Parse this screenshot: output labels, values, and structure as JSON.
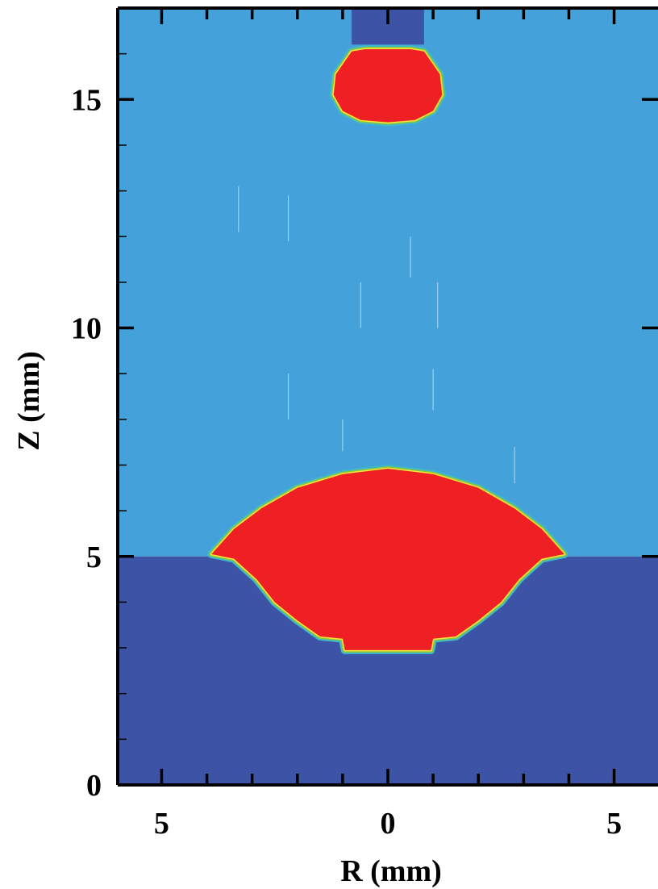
{
  "chart_data": {
    "type": "heatmap",
    "title": "",
    "xlabel": "R (mm)",
    "ylabel": "Z (mm)",
    "xlim": [
      -5.97,
      5.97
    ],
    "ylim": [
      0,
      17
    ],
    "x_tick_labels": [
      {
        "value": -5,
        "label": "5"
      },
      {
        "value": 0,
        "label": "0"
      },
      {
        "value": 5,
        "label": "5"
      }
    ],
    "y_tick_labels": [
      {
        "value": 0,
        "label": "0"
      },
      {
        "value": 5,
        "label": "5"
      },
      {
        "value": 10,
        "label": "10"
      },
      {
        "value": 15,
        "label": "15"
      }
    ],
    "x_major_ticks": [
      -5,
      -4,
      -3,
      -2,
      -1,
      0,
      1,
      2,
      3,
      4,
      5
    ],
    "y_minor_ticks": [
      1,
      2,
      3,
      4,
      6,
      7,
      8,
      9,
      11,
      12,
      13,
      14,
      16
    ],
    "grid": false,
    "legend": "none",
    "colors": {
      "substrate": "#3c53a6",
      "gas": "#44a1da",
      "molten_droplet": "#ee2024",
      "interface_outer": "#3fb8c8",
      "interface_mid": "#8dc63f",
      "interface_inner": "#f5e53b"
    },
    "regions": [
      {
        "name": "gas",
        "fill": "gas",
        "points": [
          [
            -5.97,
            5
          ],
          [
            5.97,
            5
          ],
          [
            5.97,
            17
          ],
          [
            -5.97,
            17
          ]
        ]
      },
      {
        "name": "substrate",
        "fill": "substrate",
        "points": [
          [
            -5.97,
            0
          ],
          [
            5.97,
            0
          ],
          [
            5.97,
            5
          ],
          [
            -5.97,
            5
          ]
        ]
      },
      {
        "name": "wire",
        "fill": "substrate",
        "points": [
          [
            -0.8,
            16.2
          ],
          [
            0.8,
            16.2
          ],
          [
            0.8,
            17
          ],
          [
            -0.8,
            17
          ]
        ]
      }
    ],
    "interfaces": [
      {
        "name": "molten-pool",
        "points": [
          [
            -3.9,
            5.05
          ],
          [
            -3.4,
            5.6
          ],
          [
            -2.8,
            6.05
          ],
          [
            -2.0,
            6.5
          ],
          [
            -1.0,
            6.8
          ],
          [
            0,
            6.92
          ],
          [
            1.0,
            6.8
          ],
          [
            2.0,
            6.5
          ],
          [
            2.8,
            6.05
          ],
          [
            3.4,
            5.6
          ],
          [
            3.9,
            5.05
          ],
          [
            3.4,
            4.95
          ],
          [
            2.9,
            4.5
          ],
          [
            2.5,
            4.0
          ],
          [
            2.0,
            3.6
          ],
          [
            1.5,
            3.25
          ],
          [
            1.0,
            3.2
          ],
          [
            0.95,
            2.95
          ],
          [
            -0.95,
            2.95
          ],
          [
            -1.0,
            3.2
          ],
          [
            -1.5,
            3.25
          ],
          [
            -2.0,
            3.6
          ],
          [
            -2.5,
            4.0
          ],
          [
            -2.9,
            4.5
          ],
          [
            -3.4,
            4.95
          ]
        ]
      },
      {
        "name": "droplet",
        "points": [
          [
            -0.8,
            16.05
          ],
          [
            -1.15,
            15.55
          ],
          [
            -1.2,
            15.1
          ],
          [
            -1.0,
            14.75
          ],
          [
            -0.6,
            14.55
          ],
          [
            0,
            14.5
          ],
          [
            0.6,
            14.55
          ],
          [
            1.0,
            14.75
          ],
          [
            1.2,
            15.1
          ],
          [
            1.15,
            15.55
          ],
          [
            0.8,
            16.05
          ],
          [
            0.5,
            16.1
          ],
          [
            0,
            16.1
          ],
          [
            -0.5,
            16.1
          ]
        ]
      }
    ]
  }
}
